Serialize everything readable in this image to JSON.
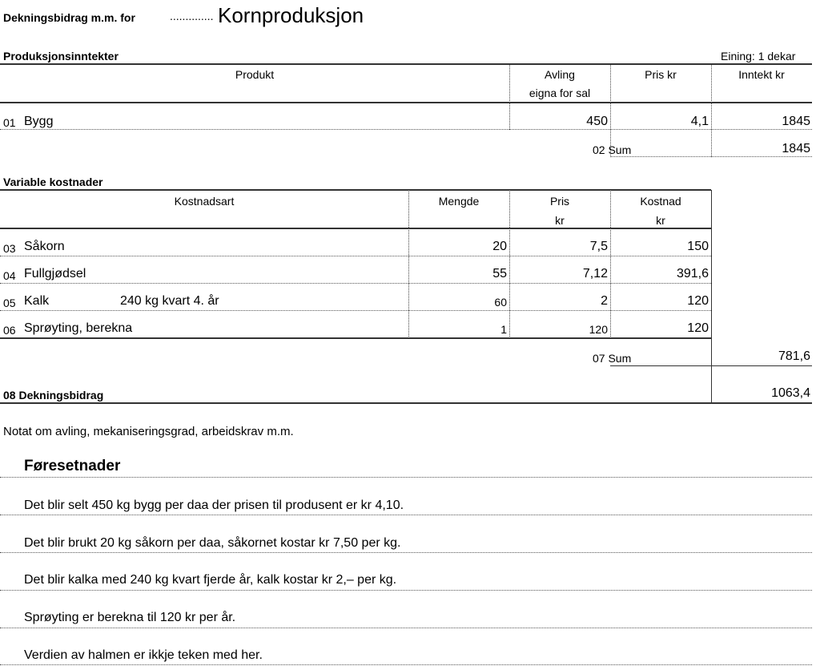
{
  "header": {
    "label": "Dekningsbidrag m.m. for",
    "dots": "..............",
    "title": "Kornproduksjon"
  },
  "income": {
    "title": "Produksjonsinntekter",
    "unit": "Eining: 1 dekar",
    "columns": [
      "Produkt",
      "Avling",
      "eigna for sal",
      "Pris kr",
      "Inntekt kr"
    ],
    "rows": [
      {
        "no": "01",
        "name": "Bygg",
        "avling": "450",
        "pris": "4,1",
        "inntekt": "1845"
      }
    ],
    "sum": {
      "label": "02 Sum",
      "value": "1845"
    }
  },
  "costs": {
    "title": "Variable kostnader",
    "columns": [
      "Kostnadsart",
      "Mengde",
      "Pris",
      "kr",
      "Kostnad",
      "kr"
    ],
    "rows": [
      {
        "no": "03",
        "name": "Såkorn",
        "note": "",
        "mengde": "20",
        "pris": "7,5",
        "kostnad": "150"
      },
      {
        "no": "04",
        "name": "Fullgjødsel",
        "note": "",
        "mengde": "55",
        "pris": "7,12",
        "kostnad": "391,6"
      },
      {
        "no": "05",
        "name": "Kalk",
        "note": "240 kg kvart 4. år",
        "mengde": "60",
        "pris": "2",
        "kostnad": "120"
      },
      {
        "no": "06",
        "name": "Sprøyting, berekna",
        "note": "",
        "mengde": "1",
        "pris": "120",
        "kostnad": "120"
      }
    ],
    "sum": {
      "label": "07 Sum",
      "value": "781,6"
    }
  },
  "db": {
    "label": "08 Dekningsbidrag",
    "value": "1063,4"
  },
  "notes": {
    "intro": "Notat om avling, mekaniseringsgrad, arbeidskrav m.m.",
    "heading": "Føresetnader",
    "lines": [
      "Det blir selt 450 kg bygg per daa der prisen til produsent er kr 4,10.",
      "Det blir brukt 20 kg såkorn per daa, såkornet kostar kr 7,50 per kg.",
      "Det blir kalka med 240 kg kvart fjerde år, kalk kostar kr 2,– per kg.",
      "Sprøyting er berekna til 120 kr per år.",
      "Verdien av halmen er ikkje teken med her."
    ]
  }
}
